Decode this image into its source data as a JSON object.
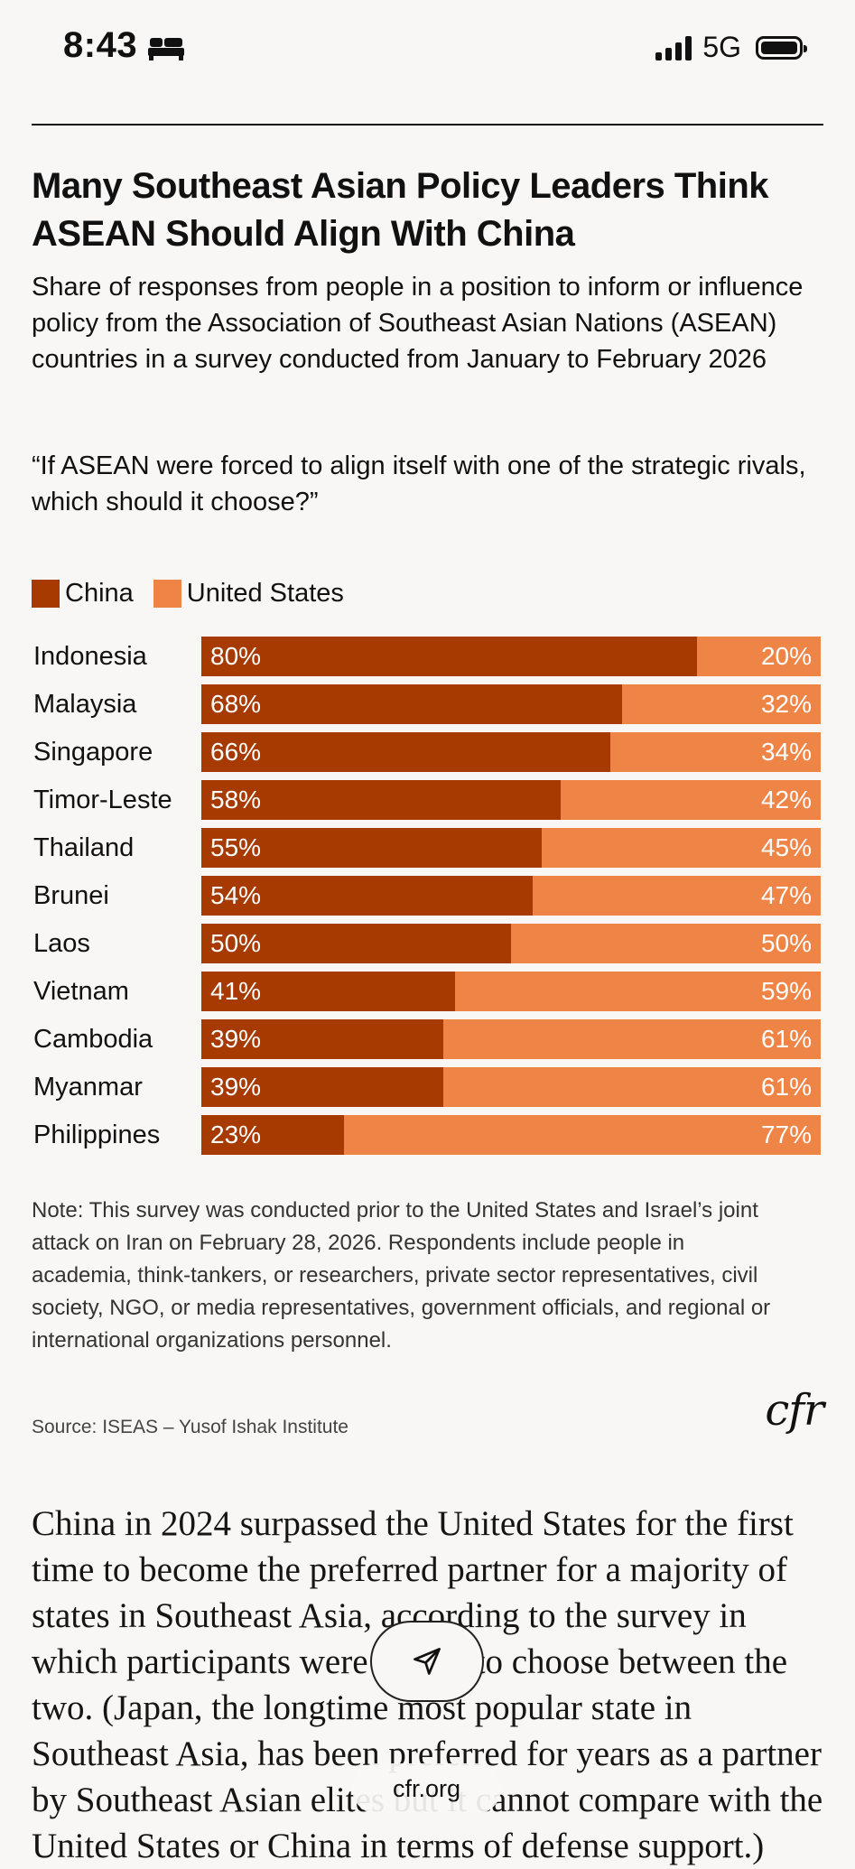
{
  "status_bar": {
    "time": "8:43",
    "network": "5G",
    "icons": [
      "bed-icon",
      "signal-icon",
      "battery-icon"
    ]
  },
  "article": {
    "headline": "Many Southeast Asian Policy Leaders Think ASEAN Should Align With China",
    "subhead": "Share of responses from people in a position to inform or influence policy from the Association of Southeast Asian Nations (ASEAN) countries in a survey conducted from January to February 2026",
    "question": "“If ASEAN were forced to align itself with one of the strategic rivals, which should it choose?”",
    "note": "Note: This survey was conducted prior to the United States and Israel’s joint attack on Iran on February 28, 2026. Respondents include people in academia, think-tankers, or researchers, private sector representatives, civil society, NGO, or media representatives, government officials, and regional or international organizations personnel.",
    "source": "Source: ISEAS – Yusof Ishak Institute",
    "logo": "cfr",
    "body": "China in 2024 surpassed the United States for the first time to become the preferred partner for a majority of states in Southeast Asia, according to the survey in which participants were forced to choose between the two. (Japan, the longtime most popular state in Southeast Asia, has been preferred for years as a partner by Southeast Asian elites but it cannot compare with the United States or China in terms of defense support.)"
  },
  "chart_data": {
    "type": "bar",
    "stacked": true,
    "orientation": "horizontal",
    "categories": [
      "Indonesia",
      "Malaysia",
      "Singapore",
      "Timor-Leste",
      "Thailand",
      "Brunei",
      "Laos",
      "Vietnam",
      "Cambodia",
      "Myanmar",
      "Philippines"
    ],
    "series": [
      {
        "name": "China",
        "color": "#a63a00",
        "values": [
          80,
          68,
          66,
          58,
          55,
          54,
          50,
          41,
          39,
          39,
          23
        ]
      },
      {
        "name": "United States",
        "color": "#ef8447",
        "values": [
          20,
          32,
          34,
          42,
          45,
          47,
          50,
          59,
          61,
          61,
          77
        ]
      }
    ],
    "legend_position": "top-left",
    "value_suffix": "%"
  },
  "overlay": {
    "url": "cfr.org",
    "share_icon": "send-icon"
  }
}
